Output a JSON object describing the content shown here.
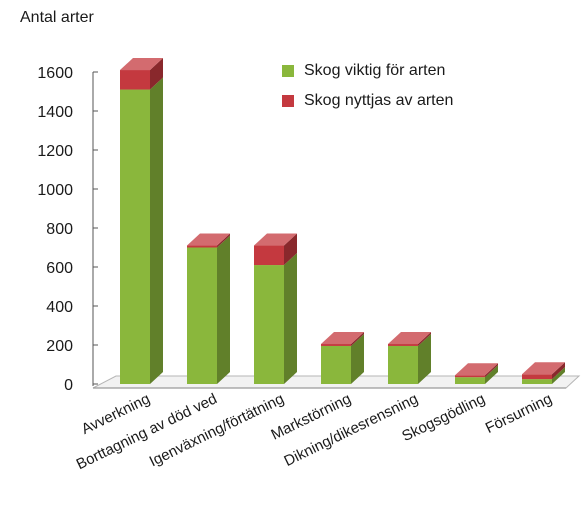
{
  "chart_data": {
    "type": "bar",
    "stacked": true,
    "ylabel": "Antal arter",
    "xlabel": "",
    "ylim": [
      0,
      1600
    ],
    "yticks": [
      0,
      200,
      400,
      600,
      800,
      1000,
      1200,
      1400,
      1600
    ],
    "categories": [
      "Avverkning",
      "Borttagning av död ved",
      "Igenväxning/förtätning",
      "Markstörning",
      "Dikning/dikesrensning",
      "Skogsgödling",
      "Försurning"
    ],
    "series": [
      {
        "name": "Skog viktig för arten",
        "color": "#8ab73c",
        "values": [
          1510,
          700,
          610,
          195,
          195,
          35,
          25
        ]
      },
      {
        "name": "Skog nyttjas av arten",
        "color": "#c4393f",
        "values": [
          100,
          10,
          100,
          10,
          10,
          10,
          25
        ]
      }
    ],
    "legend_position": "top-right",
    "grid": false,
    "style": "3d"
  }
}
